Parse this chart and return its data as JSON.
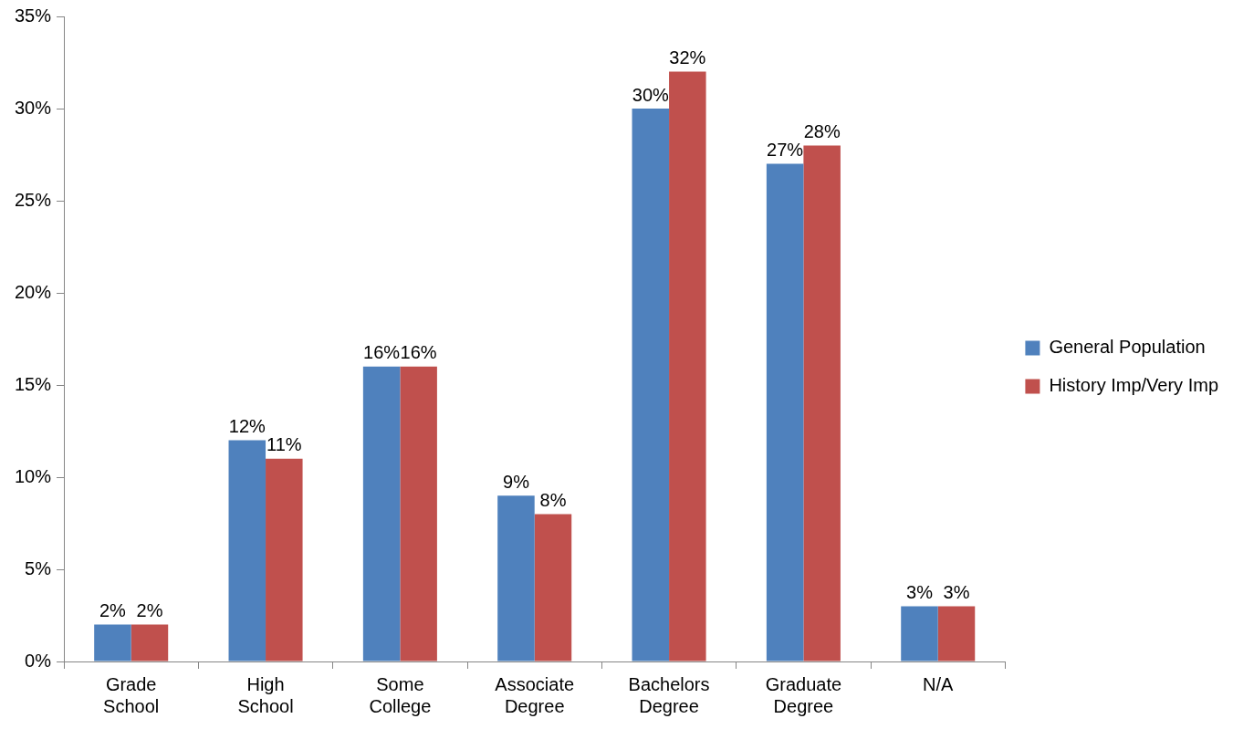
{
  "chart_data": {
    "type": "bar",
    "categories": [
      "Grade School",
      "High School",
      "Some College",
      "Associate Degree",
      "Bachelors Degree",
      "Graduate Degree",
      "N/A"
    ],
    "series": [
      {
        "name": "General Population",
        "color": "#4f81bd",
        "values": [
          2,
          12,
          16,
          9,
          30,
          27,
          3
        ],
        "value_labels": [
          "2%",
          "12%",
          "16%",
          "9%",
          "30%",
          "27%",
          "3%"
        ]
      },
      {
        "name": "History Imp/Very Imp",
        "color": "#c0504d",
        "values": [
          2,
          11,
          16,
          8,
          32,
          28,
          3
        ],
        "value_labels": [
          "2%",
          "11%",
          "16%",
          "8%",
          "32%",
          "28%",
          "3%"
        ]
      }
    ],
    "ylim": [
      0,
      35
    ],
    "yticks": [
      {
        "value": 0,
        "label": "0%"
      },
      {
        "value": 5,
        "label": "5%"
      },
      {
        "value": 10,
        "label": "10%"
      },
      {
        "value": 15,
        "label": "15%"
      },
      {
        "value": 20,
        "label": "20%"
      },
      {
        "value": 25,
        "label": "25%"
      },
      {
        "value": 30,
        "label": "30%"
      },
      {
        "value": 35,
        "label": "35%"
      }
    ],
    "grid": false,
    "legend": "right"
  }
}
